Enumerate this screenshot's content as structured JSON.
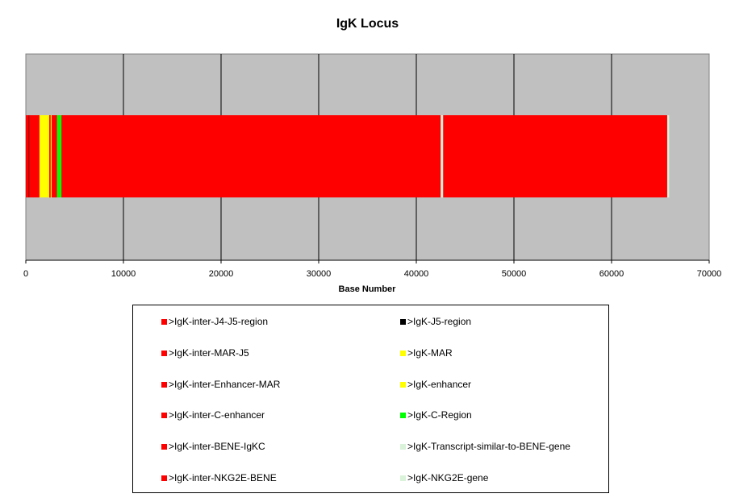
{
  "chart_data": {
    "type": "bar",
    "orientation": "horizontal-stacked",
    "title": "IgK Locus",
    "xlabel": "Base Number",
    "xlim": [
      0,
      70000
    ],
    "x_ticks": [
      0,
      10000,
      20000,
      30000,
      40000,
      50000,
      60000,
      70000
    ],
    "x_tick_labels": [
      "0",
      "10000",
      "20000",
      "30000",
      "40000",
      "50000",
      "60000",
      "70000"
    ],
    "grid": "vertical",
    "plot_background": "#C0C0C0",
    "legend_position": "bottom",
    "segments": [
      {
        "name": ">IgK-inter-J4-J5-region",
        "start": 0,
        "end": 300,
        "color": "#FF0000"
      },
      {
        "name": ">IgK-J5-region",
        "start": 300,
        "end": 340,
        "color": "#000000"
      },
      {
        "name": ">IgK-inter-MAR-J5",
        "start": 340,
        "end": 1400,
        "color": "#FF0000"
      },
      {
        "name": ">IgK-MAR",
        "start": 1400,
        "end": 2400,
        "color": "#FFFF00"
      },
      {
        "name": ">IgK-inter-Enhancer-MAR",
        "start": 2400,
        "end": 2550,
        "color": "#FF0000"
      },
      {
        "name": ">IgK-enhancer",
        "start": 2550,
        "end": 2650,
        "color": "#FFFF00"
      },
      {
        "name": ">IgK-inter-C-enhancer",
        "start": 2650,
        "end": 3200,
        "color": "#FF0000"
      },
      {
        "name": ">IgK-C-Region",
        "start": 3200,
        "end": 3650,
        "color": "#00FF00"
      },
      {
        "name": ">IgK-inter-BENE-IgKC",
        "start": 3650,
        "end": 42500,
        "color": "#FF0000"
      },
      {
        "name": ">IgK-Transcript-similar-to-BENE-gene",
        "start": 42500,
        "end": 42750,
        "color": "#D9F2D9"
      },
      {
        "name": ">IgK-inter-NKG2E-BENE",
        "start": 42750,
        "end": 65700,
        "color": "#FF0000"
      },
      {
        "name": ">IgK-NKG2E-gene",
        "start": 65700,
        "end": 65900,
        "color": "#D9F2D9"
      }
    ]
  },
  "legend": {
    "left_column": [
      {
        "label": ">IgK-inter-J4-J5-region",
        "color": "#FF0000"
      },
      {
        "label": ">IgK-inter-MAR-J5",
        "color": "#FF0000"
      },
      {
        "label": ">IgK-inter-Enhancer-MAR",
        "color": "#FF0000"
      },
      {
        "label": ">IgK-inter-C-enhancer",
        "color": "#FF0000"
      },
      {
        "label": ">IgK-inter-BENE-IgKC",
        "color": "#FF0000"
      },
      {
        "label": ">IgK-inter-NKG2E-BENE",
        "color": "#FF0000"
      }
    ],
    "right_column": [
      {
        "label": ">IgK-J5-region",
        "color": "#000000"
      },
      {
        "label": ">IgK-MAR",
        "color": "#FFFF00"
      },
      {
        "label": ">IgK-enhancer",
        "color": "#FFFF00"
      },
      {
        "label": ">IgK-C-Region",
        "color": "#00FF00"
      },
      {
        "label": ">IgK-Transcript-similar-to-BENE-gene",
        "color": "#D9F2D9"
      },
      {
        "label": ">IgK-NKG2E-gene",
        "color": "#D9F2D9"
      }
    ]
  }
}
